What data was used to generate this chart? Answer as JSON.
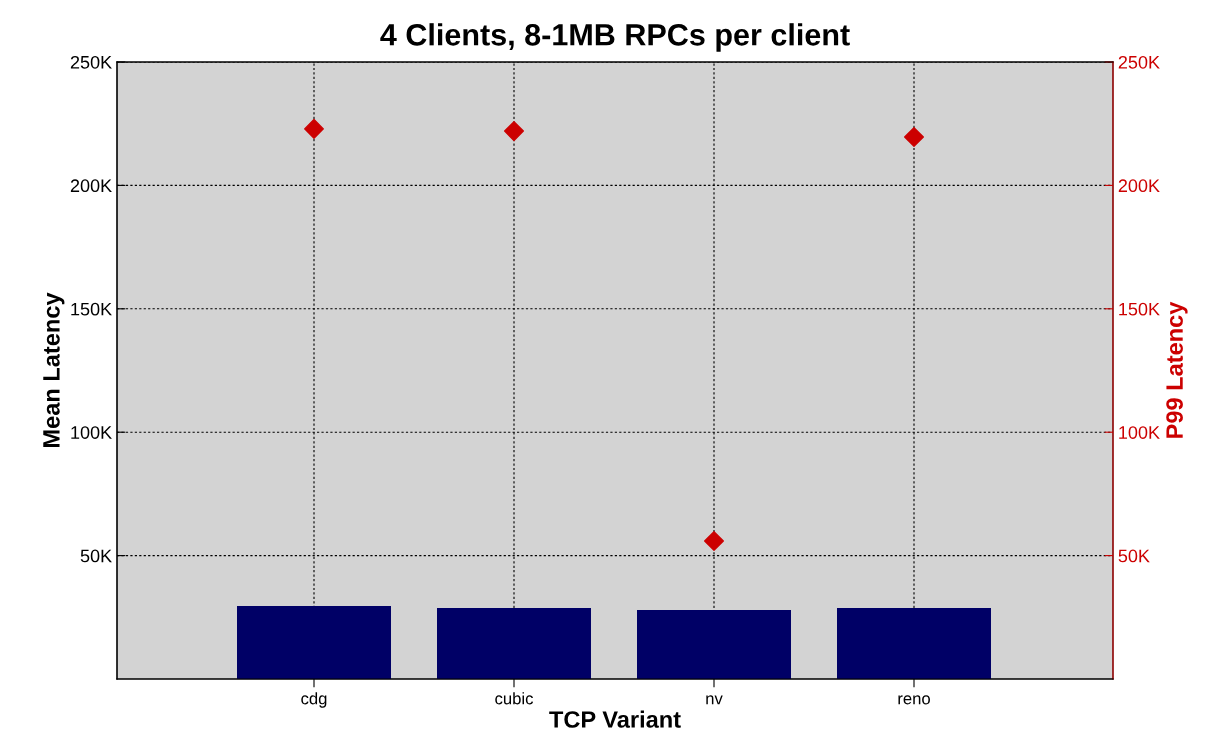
{
  "chart_data": {
    "type": "bar",
    "title": "4 Clients, 8-1MB RPCs per client",
    "xlabel": "TCP Variant",
    "ylabel": "Mean Latency",
    "y2label": "P99 Latency",
    "categories": [
      "cdg",
      "cubic",
      "nv",
      "reno"
    ],
    "series": [
      {
        "color": "#000066",
        "values": [
          29600,
          28800,
          28000,
          28800
        ]
      },
      {
        "type": "scatter",
        "axis": "y2",
        "color": "#cc0000",
        "values": [
          222900,
          222000,
          55900,
          219600
        ]
      }
    ],
    "ylim": [
      0,
      250000
    ],
    "yticks": [
      {
        "value": 50000,
        "label": "50K"
      },
      {
        "value": 100000,
        "label": "100K"
      },
      {
        "value": 150000,
        "label": "150K"
      },
      {
        "value": 200000,
        "label": "200K"
      },
      {
        "value": 250000,
        "label": "250K"
      }
    ],
    "y2lim": [
      0,
      250000
    ],
    "y2ticks": [
      {
        "value": 50000,
        "label": "50K"
      },
      {
        "value": 100000,
        "label": "100K"
      },
      {
        "value": 150000,
        "label": "150K"
      },
      {
        "value": 200000,
        "label": "200K"
      },
      {
        "value": 250000,
        "label": "250K"
      }
    ],
    "grid": true,
    "marker": "diamond",
    "legend": false
  }
}
